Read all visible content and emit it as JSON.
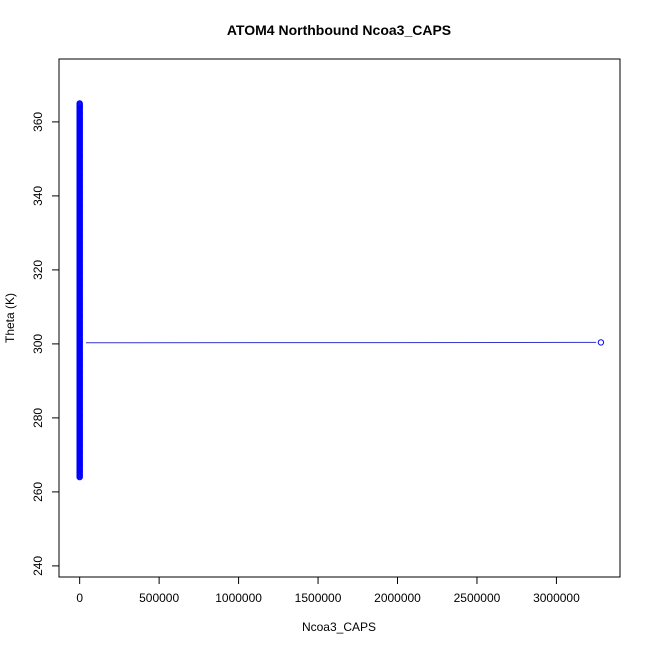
{
  "chart_data": {
    "type": "scatter",
    "title": "ATOM4 Northbound Ncoa3_CAPS",
    "xlabel": "Ncoa3_CAPS",
    "ylabel": "Theta (K)",
    "xlim": [
      -130000,
      3400000
    ],
    "ylim": [
      237,
      377
    ],
    "x_ticks": [
      0,
      500000,
      1000000,
      1500000,
      2000000,
      2500000,
      3000000
    ],
    "x_tick_labels": [
      "0",
      "500000",
      "1000000",
      "1500000",
      "2000000",
      "2500000",
      "3000000"
    ],
    "y_ticks": [
      240,
      260,
      280,
      300,
      320,
      340,
      360
    ],
    "y_tick_labels": [
      "240",
      "260",
      "280",
      "300",
      "320",
      "340",
      "360"
    ],
    "grid": false,
    "series": [
      {
        "marker": "open-circle",
        "color": "#0000ff",
        "cluster": {
          "x": 0,
          "y_min": 264,
          "y_max": 365,
          "y_step": 0.25
        },
        "points": [
          {
            "x": 3280000,
            "y": 300.4
          }
        ]
      }
    ],
    "trend_line": {
      "color": "#3333cc",
      "x": [
        40000,
        3250000
      ],
      "y": [
        300.3,
        300.4
      ]
    }
  }
}
